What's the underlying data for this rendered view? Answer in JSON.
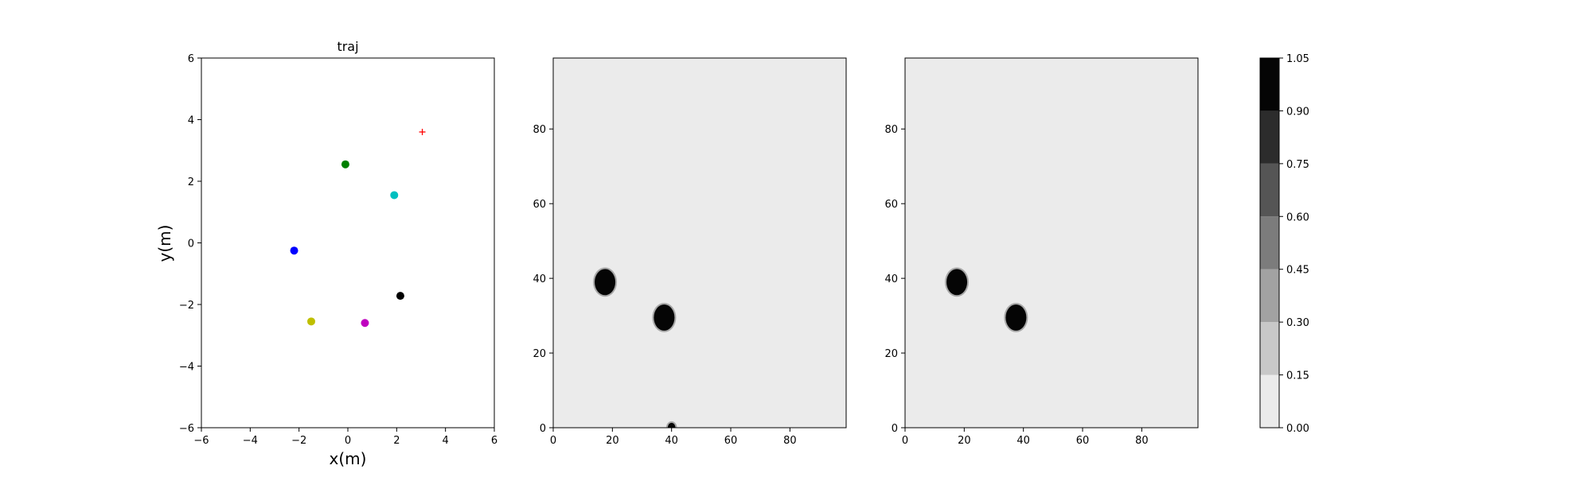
{
  "chart_data": [
    {
      "type": "scatter",
      "title": "traj",
      "xlabel": "x(m)",
      "ylabel": "y(m)",
      "xlim": [
        -6,
        6
      ],
      "ylim": [
        -6,
        6
      ],
      "xticks": [
        -6,
        -4,
        -2,
        0,
        2,
        4,
        6
      ],
      "yticks": [
        -6,
        -4,
        -2,
        0,
        2,
        4,
        6
      ],
      "grid": false,
      "points": [
        {
          "x": -0.1,
          "y": 2.55,
          "color": "#008000",
          "marker": "circle"
        },
        {
          "x": 1.9,
          "y": 1.55,
          "color": "#00bfbf",
          "marker": "circle"
        },
        {
          "x": -2.2,
          "y": -0.25,
          "color": "#0000ff",
          "marker": "circle"
        },
        {
          "x": 2.15,
          "y": -1.72,
          "color": "#000000",
          "marker": "circle"
        },
        {
          "x": -1.5,
          "y": -2.55,
          "color": "#bfbf00",
          "marker": "circle"
        },
        {
          "x": 0.7,
          "y": -2.6,
          "color": "#bf00bf",
          "marker": "circle"
        },
        {
          "x": 3.05,
          "y": 3.6,
          "color": "#ff0000",
          "marker": "plus"
        }
      ]
    },
    {
      "type": "heatmap",
      "xlim": [
        0,
        99
      ],
      "ylim": [
        0,
        99
      ],
      "xticks": [
        0,
        20,
        40,
        60,
        80
      ],
      "yticks": [
        0,
        20,
        40,
        60,
        80
      ],
      "background_value": 0.05,
      "blobs": [
        {
          "cx": 17.5,
          "cy": 39,
          "r": 3.5,
          "value": 1.0
        },
        {
          "cx": 37.5,
          "cy": 29.5,
          "r": 3.5,
          "value": 1.0
        },
        {
          "cx": 40,
          "cy": 0,
          "r": 1.3,
          "value": 1.0
        }
      ]
    },
    {
      "type": "heatmap",
      "xlim": [
        0,
        99
      ],
      "ylim": [
        0,
        99
      ],
      "xticks": [
        0,
        20,
        40,
        60,
        80
      ],
      "yticks": [
        0,
        20,
        40,
        60,
        80
      ],
      "background_value": 0.05,
      "blobs": [
        {
          "cx": 17.5,
          "cy": 39,
          "r": 3.5,
          "value": 1.0
        },
        {
          "cx": 37.5,
          "cy": 29.5,
          "r": 3.5,
          "value": 1.0
        }
      ]
    }
  ],
  "colorbar": {
    "ticks": [
      "0.00",
      "0.15",
      "0.30",
      "0.45",
      "0.60",
      "0.75",
      "0.90",
      "1.05"
    ],
    "levels": [
      0.0,
      0.15,
      0.3,
      0.45,
      0.6,
      0.75,
      0.9,
      1.05
    ],
    "colors": [
      "#ebebeb",
      "#c8c8c8",
      "#a2a2a2",
      "#7c7c7c",
      "#555555",
      "#2c2c2c",
      "#050505"
    ]
  }
}
